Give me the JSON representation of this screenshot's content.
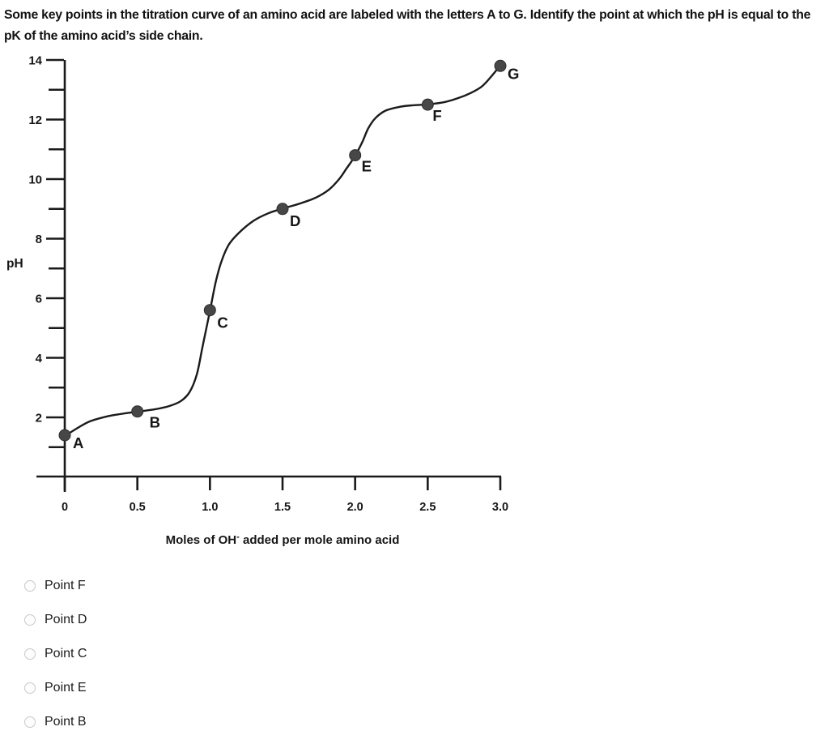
{
  "question": {
    "text": "Some key points in the titration curve of an amino acid are labeled with the letters A to G. Identify the point at which the pH is equal to the pK of the amino acid’s side chain."
  },
  "chart_data": {
    "type": "line",
    "title": "",
    "xlabel": "Moles of OH⁻ added per mole amino acid",
    "xlabel_parts": {
      "main": "Moles of OH",
      "sup": "-",
      "rest": " added per mole amino acid"
    },
    "ylabel": "pH",
    "xlim": [
      0,
      3.0
    ],
    "ylim": [
      0,
      14
    ],
    "grid": false,
    "legend": "none",
    "x_ticks": [
      {
        "value": 0,
        "label": "0"
      },
      {
        "value": 0.5,
        "label": "0.5"
      },
      {
        "value": 1.0,
        "label": "1.0"
      },
      {
        "value": 1.5,
        "label": "1.5"
      },
      {
        "value": 2.0,
        "label": "2.0"
      },
      {
        "value": 2.5,
        "label": "2.5"
      },
      {
        "value": 3.0,
        "label": "3.0"
      }
    ],
    "y_major_ticks": [
      2,
      4,
      6,
      8,
      10,
      12,
      14
    ],
    "y_minor_ticks": [
      1,
      3,
      5,
      7,
      9,
      11,
      13
    ],
    "labeled_points": [
      {
        "label": "A",
        "x": 0.0,
        "ph": 1.4
      },
      {
        "label": "B",
        "x": 0.5,
        "ph": 2.2
      },
      {
        "label": "C",
        "x": 1.0,
        "ph": 5.6
      },
      {
        "label": "D",
        "x": 1.5,
        "ph": 9.0
      },
      {
        "label": "E",
        "x": 2.0,
        "ph": 10.8
      },
      {
        "label": "F",
        "x": 2.5,
        "ph": 12.5
      },
      {
        "label": "G",
        "x": 3.0,
        "ph": 13.8
      }
    ],
    "curve": [
      [
        0.0,
        1.37
      ],
      [
        0.08,
        1.62
      ],
      [
        0.17,
        1.86
      ],
      [
        0.28,
        2.02
      ],
      [
        0.38,
        2.11
      ],
      [
        0.5,
        2.19
      ],
      [
        0.62,
        2.27
      ],
      [
        0.72,
        2.38
      ],
      [
        0.8,
        2.55
      ],
      [
        0.86,
        2.85
      ],
      [
        0.91,
        3.45
      ],
      [
        0.95,
        4.4
      ],
      [
        1.0,
        5.57
      ],
      [
        1.04,
        6.55
      ],
      [
        1.08,
        7.25
      ],
      [
        1.13,
        7.8
      ],
      [
        1.2,
        8.2
      ],
      [
        1.3,
        8.6
      ],
      [
        1.4,
        8.85
      ],
      [
        1.5,
        9.01
      ],
      [
        1.62,
        9.18
      ],
      [
        1.73,
        9.38
      ],
      [
        1.82,
        9.65
      ],
      [
        1.89,
        10.0
      ],
      [
        1.94,
        10.35
      ],
      [
        2.0,
        10.78
      ],
      [
        2.05,
        11.25
      ],
      [
        2.09,
        11.7
      ],
      [
        2.14,
        12.05
      ],
      [
        2.21,
        12.3
      ],
      [
        2.31,
        12.43
      ],
      [
        2.4,
        12.48
      ],
      [
        2.5,
        12.51
      ],
      [
        2.61,
        12.58
      ],
      [
        2.71,
        12.72
      ],
      [
        2.8,
        12.9
      ],
      [
        2.87,
        13.1
      ],
      [
        2.93,
        13.4
      ],
      [
        3.0,
        13.82
      ]
    ]
  },
  "options": [
    {
      "label": "Point F",
      "selected": false
    },
    {
      "label": "Point D",
      "selected": false
    },
    {
      "label": "Point C",
      "selected": false
    },
    {
      "label": "Point E",
      "selected": false
    },
    {
      "label": "Point B",
      "selected": false
    }
  ],
  "colors": {
    "axis": "#1a1a1a",
    "curve": "#1a1a1a",
    "dot_fill": "#474747",
    "dot_stroke": "#2e2e2e",
    "text": "#161616",
    "radio_border": "#c9c9c9",
    "background": "#ffffff"
  }
}
